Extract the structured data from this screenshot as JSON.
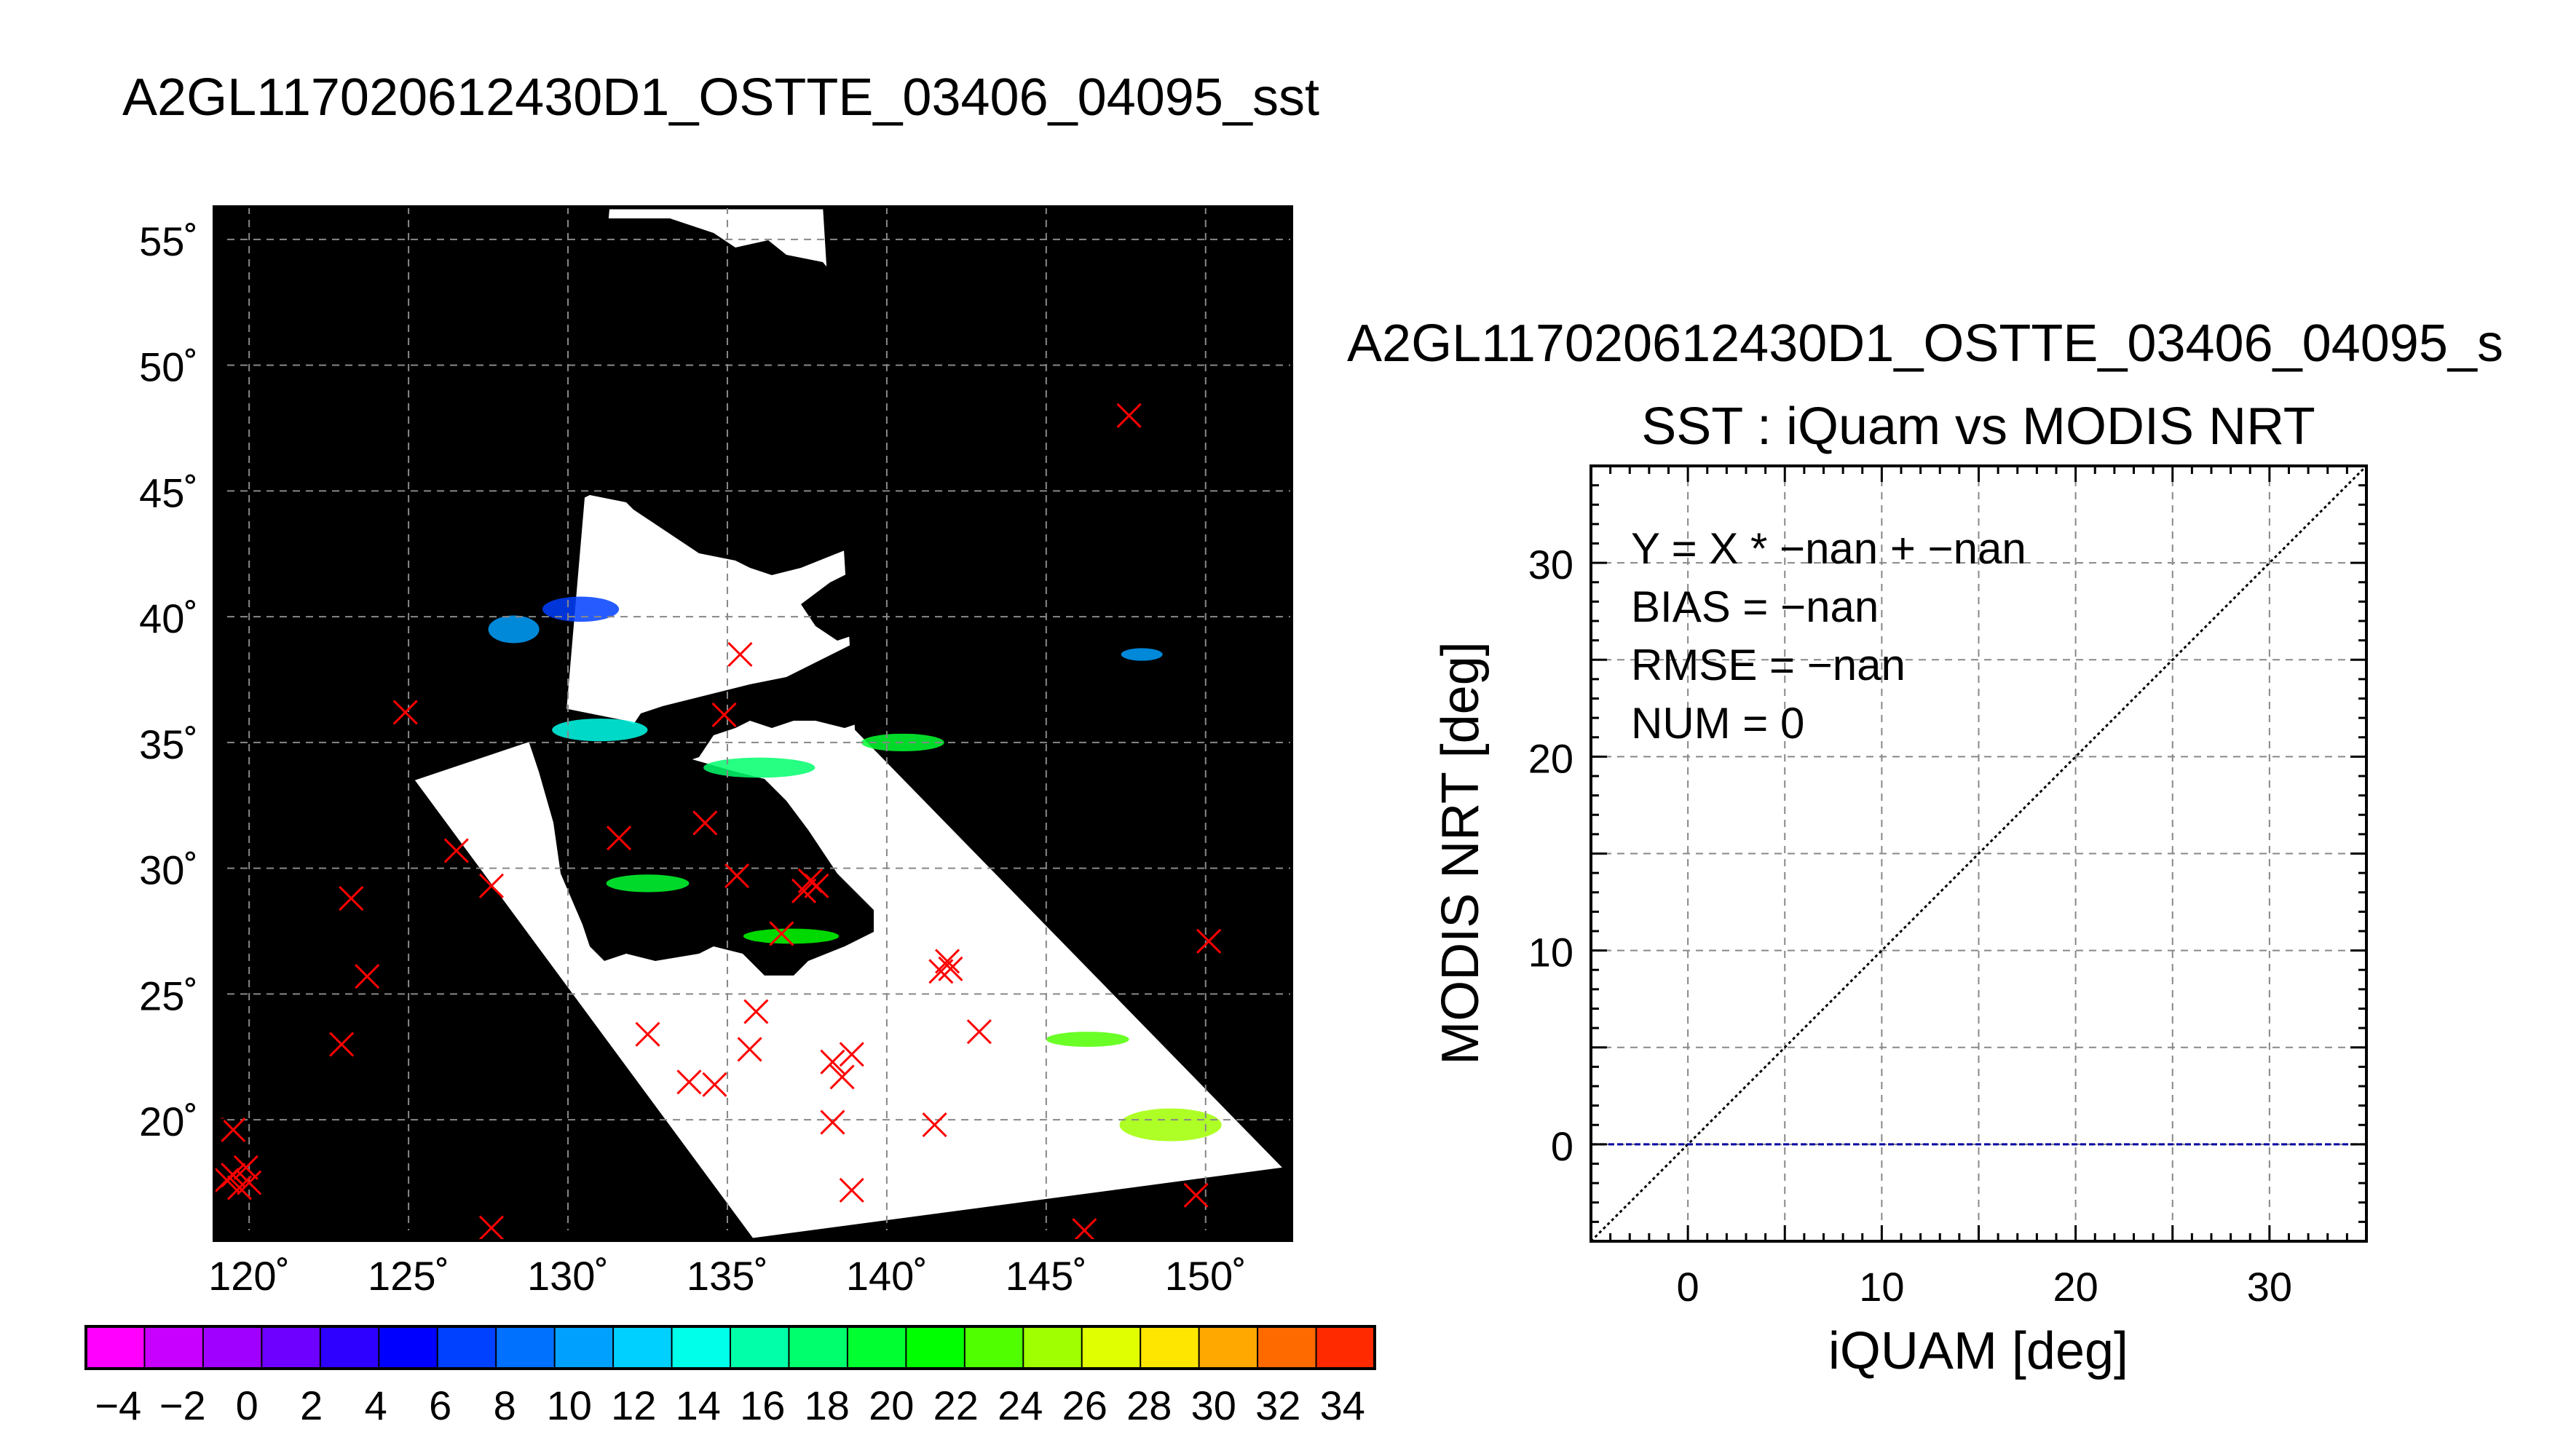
{
  "figure": {
    "title": "A2GL117020612430D1_OSTTE_03406_04095_sst"
  },
  "chart_data": [
    {
      "type": "heatmap",
      "title": "",
      "xlabel": "",
      "ylabel": "",
      "x_ticks": [
        120,
        125,
        130,
        135,
        140,
        145,
        150
      ],
      "y_ticks": [
        20,
        25,
        30,
        35,
        40,
        45,
        50,
        55
      ],
      "x_tick_labels": [
        "120˚",
        "125˚",
        "130˚",
        "135˚",
        "140˚",
        "145˚",
        "150˚"
      ],
      "y_tick_labels": [
        "20˚",
        "25˚",
        "30˚",
        "35˚",
        "40˚",
        "45˚",
        "50˚",
        "55˚"
      ],
      "xlim": [
        118.9,
        152.7
      ],
      "ylim": [
        15.2,
        56.3
      ],
      "grid": true,
      "background": "#000000",
      "swath_color": "#ffffff",
      "swath_corners": [
        [
          131.3,
          56.2
        ],
        [
          138.0,
          56.2
        ],
        [
          139.0,
          35.5
        ],
        [
          152.4,
          18.1
        ],
        [
          135.8,
          15.3
        ],
        [
          125.2,
          33.5
        ],
        [
          129.9,
          35.5
        ]
      ],
      "marker": {
        "shape": "x",
        "color": "#ff0000"
      },
      "points": [
        {
          "lon": 147.6,
          "lat": 48.0
        },
        {
          "lon": 135.4,
          "lat": 38.5
        },
        {
          "lon": 134.9,
          "lat": 36.1
        },
        {
          "lon": 124.9,
          "lat": 36.2
        },
        {
          "lon": 134.3,
          "lat": 31.8
        },
        {
          "lon": 131.6,
          "lat": 31.2
        },
        {
          "lon": 126.5,
          "lat": 30.7
        },
        {
          "lon": 127.6,
          "lat": 29.3
        },
        {
          "lon": 123.2,
          "lat": 28.8
        },
        {
          "lon": 135.3,
          "lat": 29.7
        },
        {
          "lon": 137.6,
          "lat": 29.5
        },
        {
          "lon": 137.8,
          "lat": 29.3
        },
        {
          "lon": 137.4,
          "lat": 29.1
        },
        {
          "lon": 136.7,
          "lat": 27.4
        },
        {
          "lon": 150.1,
          "lat": 27.1
        },
        {
          "lon": 141.9,
          "lat": 26.3
        },
        {
          "lon": 141.7,
          "lat": 25.9
        },
        {
          "lon": 142.0,
          "lat": 26.0
        },
        {
          "lon": 123.7,
          "lat": 25.7
        },
        {
          "lon": 132.5,
          "lat": 23.4
        },
        {
          "lon": 142.9,
          "lat": 23.5
        },
        {
          "lon": 135.9,
          "lat": 24.3
        },
        {
          "lon": 135.7,
          "lat": 22.8
        },
        {
          "lon": 122.9,
          "lat": 23.0
        },
        {
          "lon": 138.9,
          "lat": 22.6
        },
        {
          "lon": 138.3,
          "lat": 22.3
        },
        {
          "lon": 138.6,
          "lat": 21.7
        },
        {
          "lon": 133.8,
          "lat": 21.5
        },
        {
          "lon": 134.6,
          "lat": 21.4
        },
        {
          "lon": 138.3,
          "lat": 19.9
        },
        {
          "lon": 141.5,
          "lat": 19.8
        },
        {
          "lon": 119.5,
          "lat": 19.6
        },
        {
          "lon": 119.9,
          "lat": 18.1
        },
        {
          "lon": 119.5,
          "lat": 17.8
        },
        {
          "lon": 120.0,
          "lat": 17.5
        },
        {
          "lon": 119.7,
          "lat": 17.3
        },
        {
          "lon": 119.3,
          "lat": 17.6
        },
        {
          "lon": 138.9,
          "lat": 17.2
        },
        {
          "lon": 149.7,
          "lat": 17.0
        },
        {
          "lon": 127.6,
          "lat": 15.7
        },
        {
          "lon": 146.2,
          "lat": 15.6
        }
      ],
      "sst_patches": [
        {
          "lon": 128.3,
          "lat": 39.5,
          "dlon": 1.6,
          "dlat": 1.1,
          "sst": 12.5
        },
        {
          "lon": 130.4,
          "lat": 40.3,
          "dlon": 2.4,
          "dlat": 1.0,
          "sst": 8.5
        },
        {
          "lon": 131.0,
          "lat": 35.5,
          "dlon": 3.0,
          "dlat": 0.9,
          "sst": 16.5
        },
        {
          "lon": 136.0,
          "lat": 34.0,
          "dlon": 3.5,
          "dlat": 0.8,
          "sst": 19.0
        },
        {
          "lon": 140.5,
          "lat": 35.0,
          "dlon": 2.6,
          "dlat": 0.7,
          "sst": 21.0
        },
        {
          "lon": 132.5,
          "lat": 29.4,
          "dlon": 2.6,
          "dlat": 0.7,
          "sst": 22.0
        },
        {
          "lon": 137.0,
          "lat": 27.3,
          "dlon": 3.0,
          "dlat": 0.6,
          "sst": 23.5
        },
        {
          "lon": 146.3,
          "lat": 23.2,
          "dlon": 2.6,
          "dlat": 0.6,
          "sst": 25.0
        },
        {
          "lon": 148.9,
          "lat": 19.8,
          "dlon": 3.2,
          "dlat": 1.3,
          "sst": 27.0
        },
        {
          "lon": 148.0,
          "lat": 38.5,
          "dlon": 1.3,
          "dlat": 0.5,
          "sst": 11.5
        }
      ]
    },
    {
      "type": "colorbar",
      "tick_labels": [
        "−4",
        "−2",
        "0",
        "2",
        "4",
        "6",
        "8",
        "10",
        "12",
        "14",
        "16",
        "18",
        "20",
        "22",
        "24",
        "26",
        "28",
        "30",
        "32",
        "34"
      ],
      "min": -5,
      "max": 35,
      "step": 2,
      "colors": [
        "#ff00ff",
        "#c800ff",
        "#a000ff",
        "#6e00ff",
        "#2d00ff",
        "#0000ff",
        "#0040ff",
        "#0070ff",
        "#00a0ff",
        "#00d0ff",
        "#00ffea",
        "#00ffa8",
        "#00ff6c",
        "#00ff30",
        "#00ff00",
        "#50ff00",
        "#a0ff00",
        "#e0ff00",
        "#ffe600",
        "#ffa800",
        "#ff6a00",
        "#ff2a00"
      ]
    },
    {
      "type": "scatter",
      "title": "SST : iQuam vs MODIS NRT",
      "xlabel": "iQUAM [deg]",
      "ylabel": "MODIS NRT [deg]",
      "xlim": [
        -5,
        35
      ],
      "ylim": [
        -5,
        35
      ],
      "x_ticks": [
        0,
        10,
        20,
        30
      ],
      "y_ticks": [
        0,
        10,
        20,
        30
      ],
      "grid": true,
      "points": [],
      "reference_lines": [
        {
          "type": "identity",
          "style": "dotted",
          "color": "#000000"
        },
        {
          "type": "horizontal",
          "y": 0,
          "style": "dashed",
          "color": "#0000a0"
        }
      ],
      "annotations": [
        "Y = X * −nan + −nan",
        "BIAS = −nan",
        "RMSE = −nan",
        "NUM = 0"
      ],
      "figure_title": "A2GL117020612430D1_OSTTE_03406_04095_s"
    }
  ]
}
